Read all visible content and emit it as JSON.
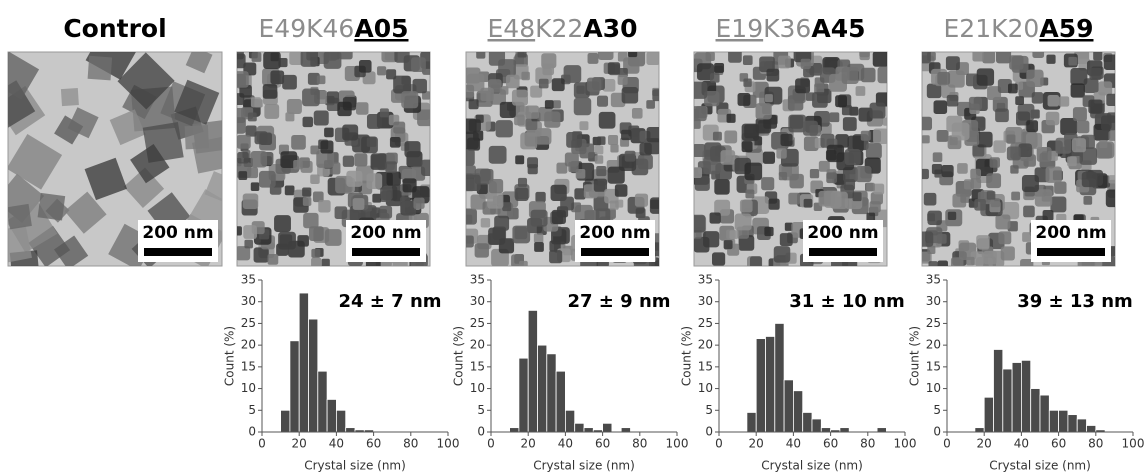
{
  "panels": [
    {
      "title_parts": [
        {
          "text": "Control",
          "style": "bold"
        }
      ],
      "scale_bar": "200 nm"
    },
    {
      "title_parts": [
        {
          "text": "E49K46",
          "style": "gray"
        },
        {
          "text": "A05",
          "style": "bold-underline"
        }
      ],
      "scale_bar": "200 nm"
    },
    {
      "title_parts": [
        {
          "text": "E48",
          "style": "gray-underline"
        },
        {
          "text": "K22",
          "style": "gray"
        },
        {
          "text": "A30",
          "style": "bold"
        }
      ],
      "scale_bar": "200 nm"
    },
    {
      "title_parts": [
        {
          "text": "E19",
          "style": "gray-underline"
        },
        {
          "text": "K36",
          "style": "gray"
        },
        {
          "text": "A45",
          "style": "bold"
        }
      ],
      "scale_bar": "200 nm"
    },
    {
      "title_parts": [
        {
          "text": "E21K20",
          "style": "gray"
        },
        {
          "text": "A59",
          "style": "bold-underline"
        }
      ],
      "scale_bar": "200 nm"
    }
  ],
  "chart_data": [
    {
      "type": "histogram",
      "annotation": "24 ± 7 nm",
      "xlabel": "Crystal size (nm)",
      "ylabel": "Count (%)",
      "color": "#4a4a4a",
      "bins": [
        10,
        15,
        20,
        25,
        30,
        35,
        40,
        45,
        50,
        55,
        60
      ],
      "values": [
        5,
        21,
        32,
        26,
        14,
        7.5,
        5,
        1,
        0.5,
        0.5
      ],
      "xlim": [
        0,
        100
      ],
      "xticks": [
        0,
        20,
        40,
        60,
        80,
        100
      ],
      "ylim": [
        0,
        35
      ],
      "yticks": [
        0,
        5,
        10,
        15,
        20,
        25,
        30,
        35
      ]
    },
    {
      "type": "histogram",
      "annotation": "27 ± 9 nm",
      "xlabel": "Crystal size (nm)",
      "ylabel": "Count (%)",
      "color": "#4a4a4a",
      "bins": [
        10,
        15,
        20,
        25,
        30,
        35,
        40,
        45,
        50,
        55,
        60,
        65,
        70,
        75
      ],
      "values": [
        1,
        17,
        28,
        20,
        18,
        14,
        5,
        2,
        1,
        0.5,
        2,
        0,
        1
      ],
      "xlim": [
        0,
        100
      ],
      "xticks": [
        0,
        20,
        40,
        60,
        80,
        100
      ],
      "ylim": [
        0,
        35
      ],
      "yticks": [
        0,
        5,
        10,
        15,
        20,
        25,
        30,
        35
      ]
    },
    {
      "type": "histogram",
      "annotation": "31 ± 10 nm",
      "xlabel": "Crystal size (nm)",
      "ylabel": "Count (%)",
      "color": "#4a4a4a",
      "bins": [
        15,
        20,
        25,
        30,
        35,
        40,
        45,
        50,
        55,
        60,
        65,
        70,
        75,
        80,
        85,
        90
      ],
      "values": [
        4.5,
        21.5,
        22,
        25,
        12,
        9.5,
        4.5,
        3,
        1,
        0.5,
        1,
        0,
        0,
        0,
        1
      ],
      "xlim": [
        0,
        100
      ],
      "xticks": [
        0,
        20,
        40,
        60,
        80,
        100
      ],
      "ylim": [
        0,
        35
      ],
      "yticks": [
        0,
        5,
        10,
        15,
        20,
        25,
        30,
        35
      ]
    },
    {
      "type": "histogram",
      "annotation": "39 ± 13 nm",
      "xlabel": "Crystal size (nm)",
      "ylabel": "Count (%)",
      "color": "#4a4a4a",
      "bins": [
        15,
        20,
        25,
        30,
        35,
        40,
        45,
        50,
        55,
        60,
        65,
        70,
        75,
        80,
        85
      ],
      "values": [
        1,
        8,
        19,
        14.5,
        16,
        16.5,
        10,
        8.5,
        5,
        5,
        4,
        3,
        1.5,
        0.5
      ],
      "xlim": [
        0,
        100
      ],
      "xticks": [
        0,
        20,
        40,
        60,
        80,
        100
      ],
      "ylim": [
        0,
        35
      ],
      "yticks": [
        0,
        5,
        10,
        15,
        20,
        25,
        30,
        35
      ]
    }
  ]
}
